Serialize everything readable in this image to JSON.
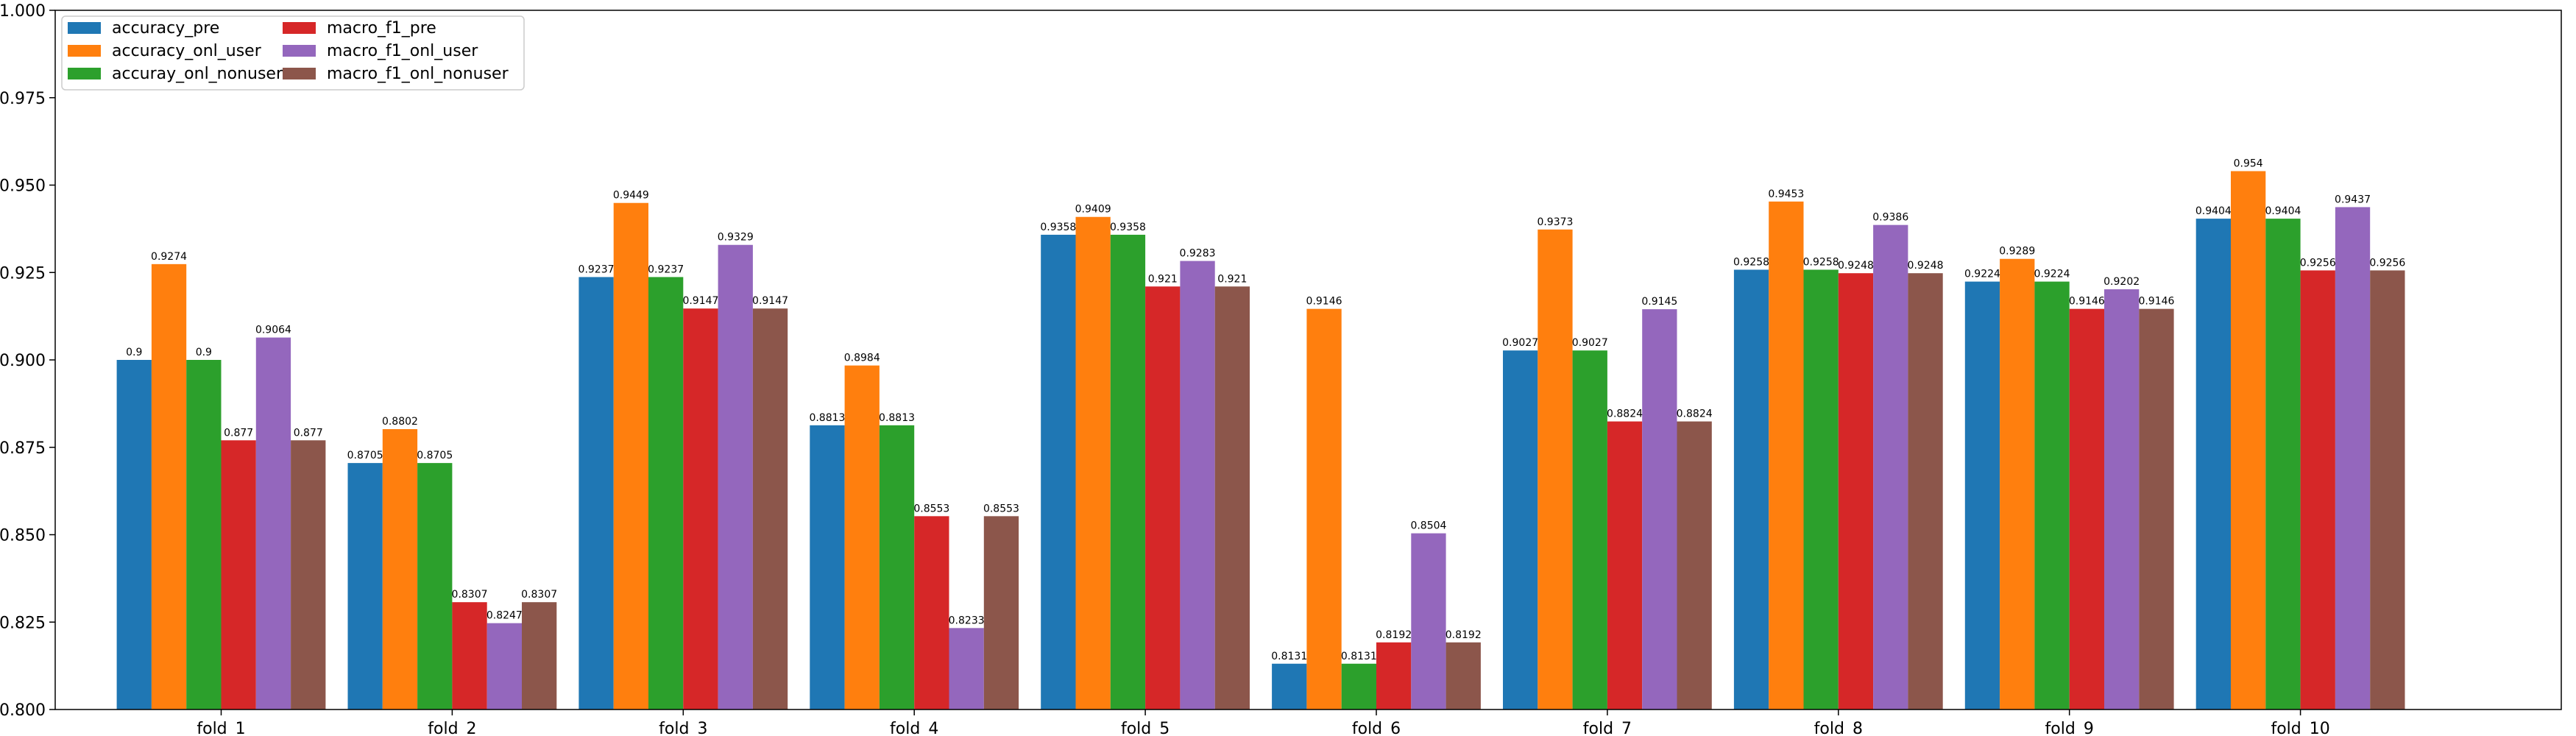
{
  "chart_data": {
    "type": "bar",
    "categories": [
      "fold_1",
      "fold_2",
      "fold_3",
      "fold_4",
      "fold_5",
      "fold_6",
      "fold_7",
      "fold_8",
      "fold_9",
      "fold_10"
    ],
    "series": [
      {
        "name": "accuracy_pre",
        "color": "#1f77b4",
        "values": [
          0.9,
          0.8705,
          0.9237,
          0.8813,
          0.9358,
          0.8131,
          0.9027,
          0.9258,
          0.9224,
          0.9404
        ],
        "labels": [
          "0.9",
          "0.8705",
          "0.9237",
          "0.8813",
          "0.9358",
          "0.8131",
          "0.9027",
          "0.9258",
          "0.9224",
          "0.9404"
        ]
      },
      {
        "name": "accuracy_onl_user",
        "color": "#ff7f0e",
        "values": [
          0.9274,
          0.8802,
          0.9449,
          0.8984,
          0.9409,
          0.9146,
          0.9373,
          0.9453,
          0.9289,
          0.954
        ],
        "labels": [
          "0.9274",
          "0.8802",
          "0.9449",
          "0.8984",
          "0.9409",
          "0.9146",
          "0.9373",
          "0.9453",
          "0.9289",
          "0.954"
        ]
      },
      {
        "name": "accuray_onl_nonuser",
        "color": "#2ca02c",
        "values": [
          0.9,
          0.8705,
          0.9237,
          0.8813,
          0.9358,
          0.8131,
          0.9027,
          0.9258,
          0.9224,
          0.9404
        ],
        "labels": [
          "0.9",
          "0.8705",
          "0.9237",
          "0.8813",
          "0.9358",
          "0.8131",
          "0.9027",
          "0.9258",
          "0.9224",
          "0.9404"
        ]
      },
      {
        "name": "macro_f1_pre",
        "color": "#d62728",
        "values": [
          0.877,
          0.8307,
          0.9147,
          0.8553,
          0.921,
          0.8192,
          0.8824,
          0.9248,
          0.9146,
          0.9256
        ],
        "labels": [
          "0.877",
          "0.8307",
          "0.9147",
          "0.8553",
          "0.921",
          "0.8192",
          "0.8824",
          "0.9248",
          "0.9146",
          "0.9256"
        ]
      },
      {
        "name": "macro_f1_onl_user",
        "color": "#9467bd",
        "values": [
          0.9064,
          0.8247,
          0.9329,
          0.8233,
          0.9283,
          0.8504,
          0.9145,
          0.9386,
          0.9202,
          0.9437
        ],
        "labels": [
          "0.9064",
          "0.8247",
          "0.9329",
          "0.8233",
          "0.9283",
          "0.8504",
          "0.9145",
          "0.9386",
          "0.9202",
          "0.9437"
        ]
      },
      {
        "name": "macro_f1_onl_nonuser",
        "color": "#8c564b",
        "values": [
          0.877,
          0.8307,
          0.9147,
          0.8553,
          0.921,
          0.8192,
          0.8824,
          0.9248,
          0.9146,
          0.9256
        ],
        "labels": [
          "0.877",
          "0.8307",
          "0.9147",
          "0.8553",
          "0.921",
          "0.8192",
          "0.8824",
          "0.9248",
          "0.9146",
          "0.9256"
        ]
      }
    ],
    "ylim": [
      0.8,
      1.0
    ],
    "yticks": [
      0.8,
      0.825,
      0.85,
      0.875,
      0.9,
      0.925,
      0.95,
      0.975,
      1.0
    ],
    "ytick_labels": [
      "0.800",
      "0.825",
      "0.850",
      "0.875",
      "0.900",
      "0.925",
      "0.950",
      "0.975",
      "1.000"
    ],
    "grid": false,
    "legend": {
      "placement": "top-left",
      "columns": 2
    },
    "title": "",
    "xlabel": "",
    "ylabel": ""
  }
}
